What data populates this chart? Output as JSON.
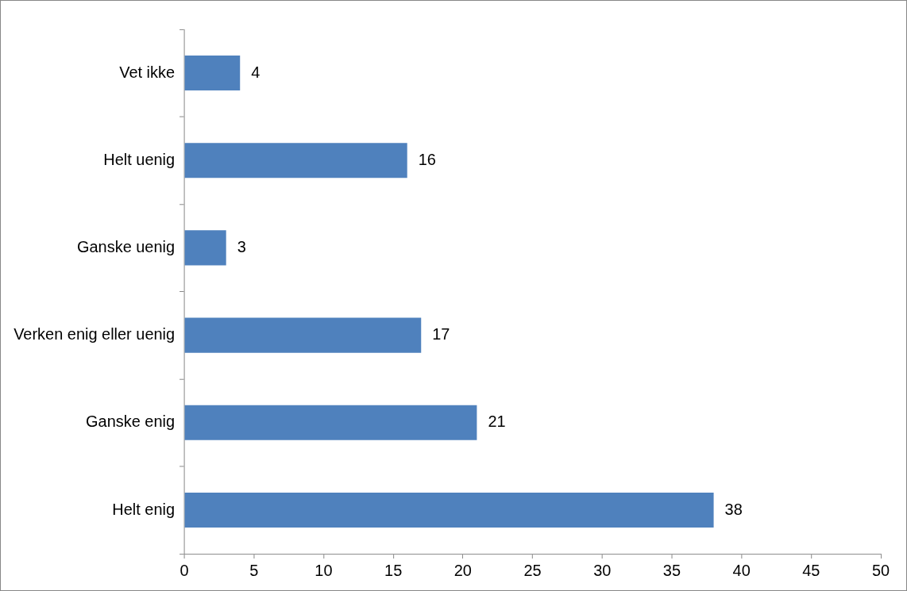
{
  "chart_data": {
    "type": "bar",
    "orientation": "horizontal",
    "categories": [
      "Vet ikke",
      "Helt uenig",
      "Ganske uenig",
      "Verken enig eller uenig",
      "Ganske enig",
      "Helt enig"
    ],
    "values": [
      4,
      16,
      3,
      17,
      21,
      38
    ],
    "color": "#4f81bd",
    "xlim": [
      0,
      50
    ],
    "xticks": [
      0,
      5,
      10,
      15,
      20,
      25,
      30,
      35,
      40,
      45,
      50
    ],
    "grid": false,
    "legend": false,
    "data_labels": true
  }
}
